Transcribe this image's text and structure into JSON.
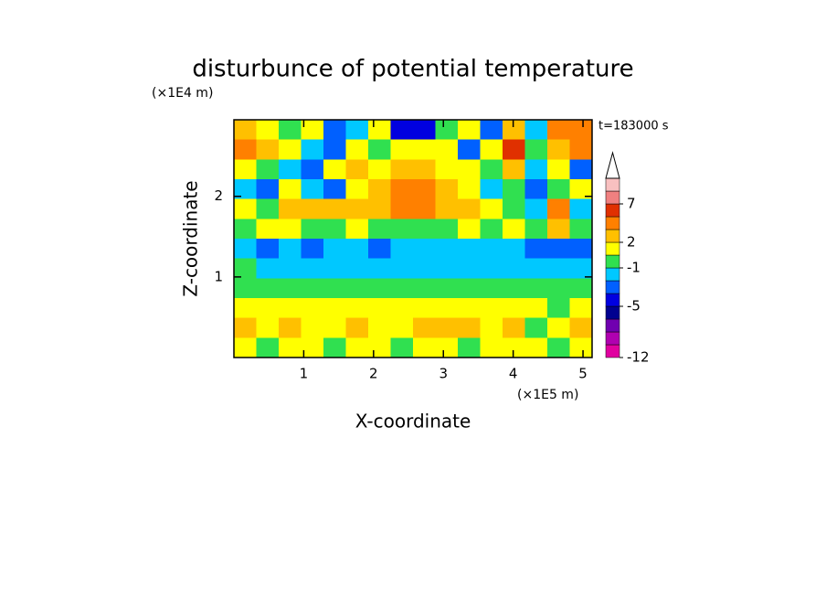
{
  "chart_data": {
    "type": "contour",
    "title": "disturbunce of potential temperature",
    "y_unit": "(×1E4 m)",
    "x_unit": "(×1E5 m)",
    "x_label": "X-coordinate",
    "y_label": "Z-coordinate",
    "annotation": "t=183000 s",
    "xlim": [
      0,
      5.13
    ],
    "ylim": [
      0,
      2.95
    ],
    "xticks": [
      1,
      2,
      3,
      4,
      5
    ],
    "yticks": [
      1,
      2
    ],
    "z": [
      [
        2.5,
        1,
        -0.5,
        1,
        -3,
        -1.5,
        1,
        -4.5,
        -4.5,
        -0.5,
        1,
        -3,
        2.5,
        -1.5,
        4,
        4
      ],
      [
        4,
        2.5,
        1,
        -1.5,
        -3,
        1,
        -0.5,
        1,
        1,
        1,
        -3,
        1,
        6,
        -0.5,
        2.5,
        4
      ],
      [
        1,
        -0.5,
        -1.5,
        -3,
        1,
        2.5,
        1,
        2.5,
        2.5,
        1,
        1,
        -0.5,
        2.5,
        -1.5,
        1,
        -3
      ],
      [
        -1.5,
        -3,
        1,
        -1.5,
        -3,
        1,
        2.5,
        4,
        4,
        2.5,
        1,
        -1.5,
        -0.5,
        -3,
        -0.5,
        1
      ],
      [
        1,
        -0.5,
        2.5,
        2.5,
        2.5,
        2.5,
        2.5,
        4,
        4,
        2.5,
        2.5,
        1,
        -0.5,
        -1.5,
        4,
        -1.5
      ],
      [
        -0.5,
        1,
        1,
        -0.5,
        -0.5,
        1,
        -0.5,
        -0.5,
        -0.5,
        -0.5,
        1,
        -0.5,
        1,
        -0.5,
        2.5,
        -0.5
      ],
      [
        -1.5,
        -3,
        -1.5,
        -3,
        -1.5,
        -1.5,
        -3,
        -1.5,
        -1.5,
        -1.5,
        -1.5,
        -1.5,
        -1.5,
        -3,
        -3,
        -3
      ],
      [
        -0.5,
        -1.5,
        -1.5,
        -1.5,
        -1.5,
        -1.5,
        -1.5,
        -1.5,
        -1.5,
        -1.5,
        -1.5,
        -1.5,
        -1.5,
        -1.5,
        -1.5,
        -1.5
      ],
      [
        -0.5,
        -0.5,
        -0.5,
        -0.5,
        -0.5,
        -0.5,
        -0.5,
        -0.5,
        -0.5,
        -0.5,
        -0.5,
        -0.5,
        -0.5,
        -0.5,
        -0.5,
        -0.5
      ],
      [
        1,
        1,
        1,
        1,
        1,
        1,
        1,
        1,
        1,
        1,
        1,
        1,
        1,
        1,
        -0.5,
        1
      ],
      [
        2.5,
        1,
        2.5,
        1,
        1,
        2.5,
        1,
        1,
        2.5,
        2.5,
        2.5,
        1,
        2.5,
        -0.5,
        1,
        2.5
      ],
      [
        1,
        -0.5,
        1,
        1,
        -0.5,
        1,
        1,
        -0.5,
        1,
        1,
        -0.5,
        1,
        1,
        1,
        -0.5,
        1
      ]
    ],
    "levels": [
      -12,
      -10,
      -8,
      -6,
      -5,
      -4,
      -2,
      -1,
      0,
      2,
      3,
      5,
      7,
      8,
      9
    ],
    "colors": [
      "#e000a0",
      "#b000b0",
      "#7000b0",
      "#000090",
      "#0000e0",
      "#0060ff",
      "#00c8ff",
      "#30e050",
      "#ffff00",
      "#ffc000",
      "#ff8000",
      "#e03000",
      "#f08080",
      "#f8c0c0"
    ],
    "extend_color": "#ffffff",
    "colorbar_ticks": [
      -12,
      -5,
      -1,
      2,
      7
    ]
  }
}
